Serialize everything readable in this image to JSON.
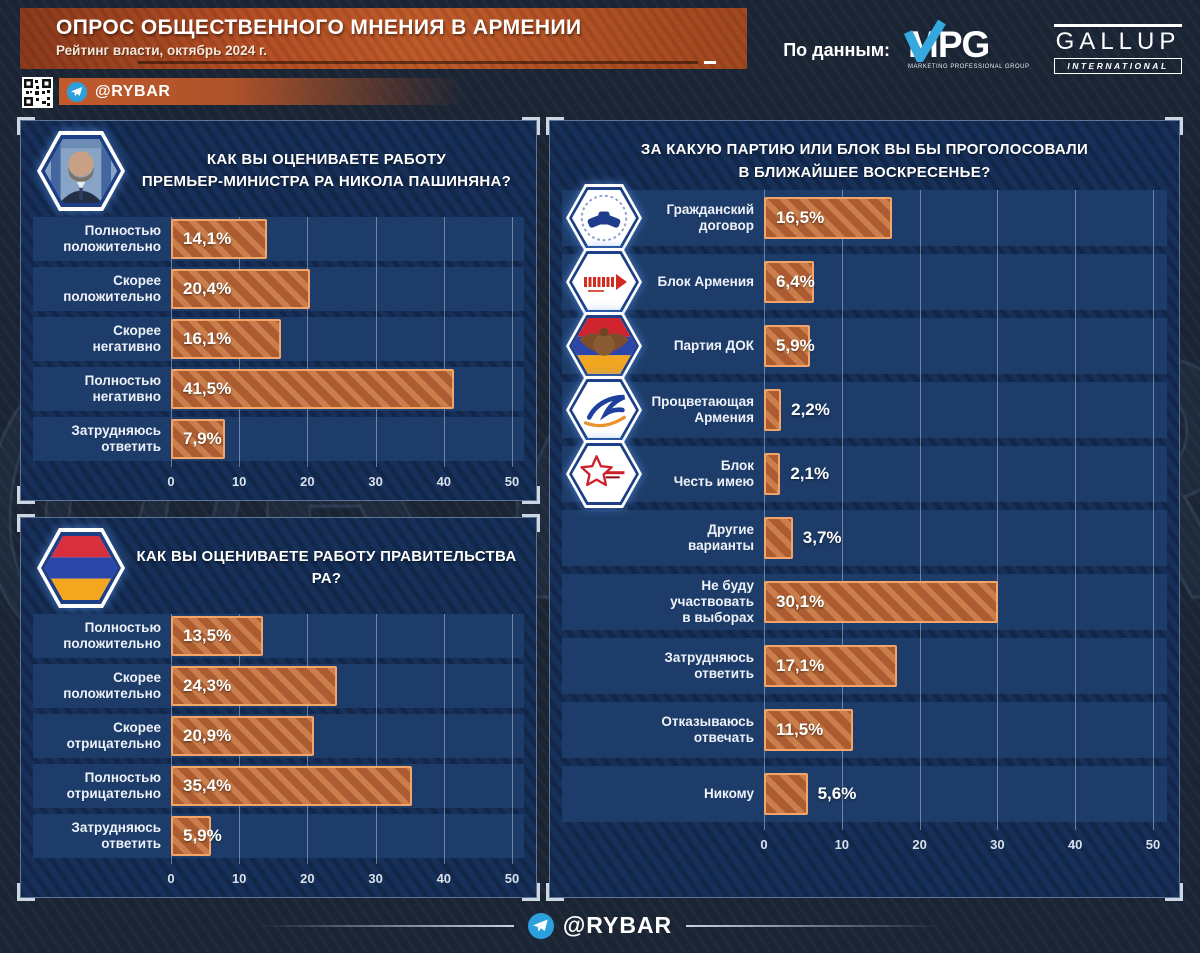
{
  "header": {
    "title": "ОПРОС ОБЩЕСТВЕННОГО МНЕНИЯ В АРМЕНИИ",
    "subtitle": "Рейтинг власти, октябрь 2024 г.",
    "channel": "@RYBAR",
    "source_label": "По данным:",
    "sources": {
      "mpg": {
        "name": "MPG",
        "tagline": "MARKETING PROFESSIONAL GROUP"
      },
      "gallup": {
        "name": "GALLUP",
        "tagline": "INTERNATIONAL"
      }
    }
  },
  "watermark": "@RYBAR",
  "footer": {
    "channel": "@RYBAR"
  },
  "colors": {
    "banner_orange": "#b34d24",
    "bar_fill": "#ac5c30",
    "bar_stripe": "#c97e4b",
    "bar_border": "#f2a569",
    "panel_blue": "#16305a",
    "row_blue": "#1d3c69",
    "page_navy": "#1a2433",
    "telegram_blue": "#2ba0dd"
  },
  "chart_data": [
    {
      "type": "bar",
      "title_lines": [
        "КАК ВЫ ОЦЕНИВАЕТЕ РАБОТУ",
        "ПРЕМЬЕР-МИНИСТРА РА НИКОЛА ПАШИНЯНА?"
      ],
      "head_badge": "pashinyan-portrait",
      "xlim": [
        0,
        50
      ],
      "ticks": [
        0,
        10,
        20,
        30,
        40,
        50
      ],
      "grid": true,
      "items": [
        {
          "label": "Полностью\nположительно",
          "value": 14.1,
          "value_label": "14,1%",
          "inside": true
        },
        {
          "label": "Скорее\nположительно",
          "value": 20.4,
          "value_label": "20,4%",
          "inside": true
        },
        {
          "label": "Скорее\nнегативно",
          "value": 16.1,
          "value_label": "16,1%",
          "inside": true
        },
        {
          "label": "Полностью\nнегативно",
          "value": 41.5,
          "value_label": "41,5%",
          "inside": true
        },
        {
          "label": "Затрудняюсь\nответить",
          "value": 7.9,
          "value_label": "7,9%",
          "inside": true
        }
      ]
    },
    {
      "type": "bar",
      "title_lines": [
        "КАК ВЫ ОЦЕНИВАЕТЕ РАБОТУ ПРАВИТЕЛЬСТВА РА?"
      ],
      "head_badge": "armenian-flag",
      "xlim": [
        0,
        50
      ],
      "ticks": [
        0,
        10,
        20,
        30,
        40,
        50
      ],
      "grid": true,
      "items": [
        {
          "label": "Полностью\nположительно",
          "value": 13.5,
          "value_label": "13,5%",
          "inside": true
        },
        {
          "label": "Скорее\nположительно",
          "value": 24.3,
          "value_label": "24,3%",
          "inside": true
        },
        {
          "label": "Скорее\nотрицательно",
          "value": 20.9,
          "value_label": "20,9%",
          "inside": true
        },
        {
          "label": "Полностью\nотрицательно",
          "value": 35.4,
          "value_label": "35,4%",
          "inside": true
        },
        {
          "label": "Затрудняюсь\nответить",
          "value": 5.9,
          "value_label": "5,9%",
          "inside": true
        }
      ]
    },
    {
      "type": "bar",
      "title_lines": [
        "ЗА КАКУЮ ПАРТИЮ ИЛИ БЛОК ВЫ БЫ ПРОГОЛОСОВАЛИ",
        "В БЛИЖАЙШЕЕ ВОСКРЕСЕНЬЕ?"
      ],
      "xlim": [
        0,
        50
      ],
      "ticks": [
        0,
        10,
        20,
        30,
        40,
        50
      ],
      "grid": true,
      "items": [
        {
          "label": "Гражданский\nдоговор",
          "value": 16.5,
          "value_label": "16,5%",
          "inside": true,
          "badge": "civil-contract-logo"
        },
        {
          "label": "Блок Армения",
          "value": 6.4,
          "value_label": "6,4%",
          "inside": true,
          "badge": "armenia-bloc-logo"
        },
        {
          "label": "Партия ДОК",
          "value": 5.9,
          "value_label": "5,9%",
          "inside": true,
          "badge": "dok-party-logo"
        },
        {
          "label": "Процветающая\nАрмения",
          "value": 2.2,
          "value_label": "2,2%",
          "inside": false,
          "badge": "prosperous-armenia-logo"
        },
        {
          "label": "Блок\nЧесть имею",
          "value": 2.1,
          "value_label": "2,1%",
          "inside": false,
          "badge": "honor-bloc-logo"
        },
        {
          "label": "Другие\nварианты",
          "value": 3.7,
          "value_label": "3,7%",
          "inside": false
        },
        {
          "label": "Не буду участвовать\nв выборах",
          "value": 30.1,
          "value_label": "30,1%",
          "inside": true
        },
        {
          "label": "Затрудняюсь\nответить",
          "value": 17.1,
          "value_label": "17,1%",
          "inside": true
        },
        {
          "label": "Отказываюсь\nотвечать",
          "value": 11.5,
          "value_label": "11,5%",
          "inside": true
        },
        {
          "label": "Никому",
          "value": 5.6,
          "value_label": "5,6%",
          "inside": false
        }
      ]
    }
  ]
}
